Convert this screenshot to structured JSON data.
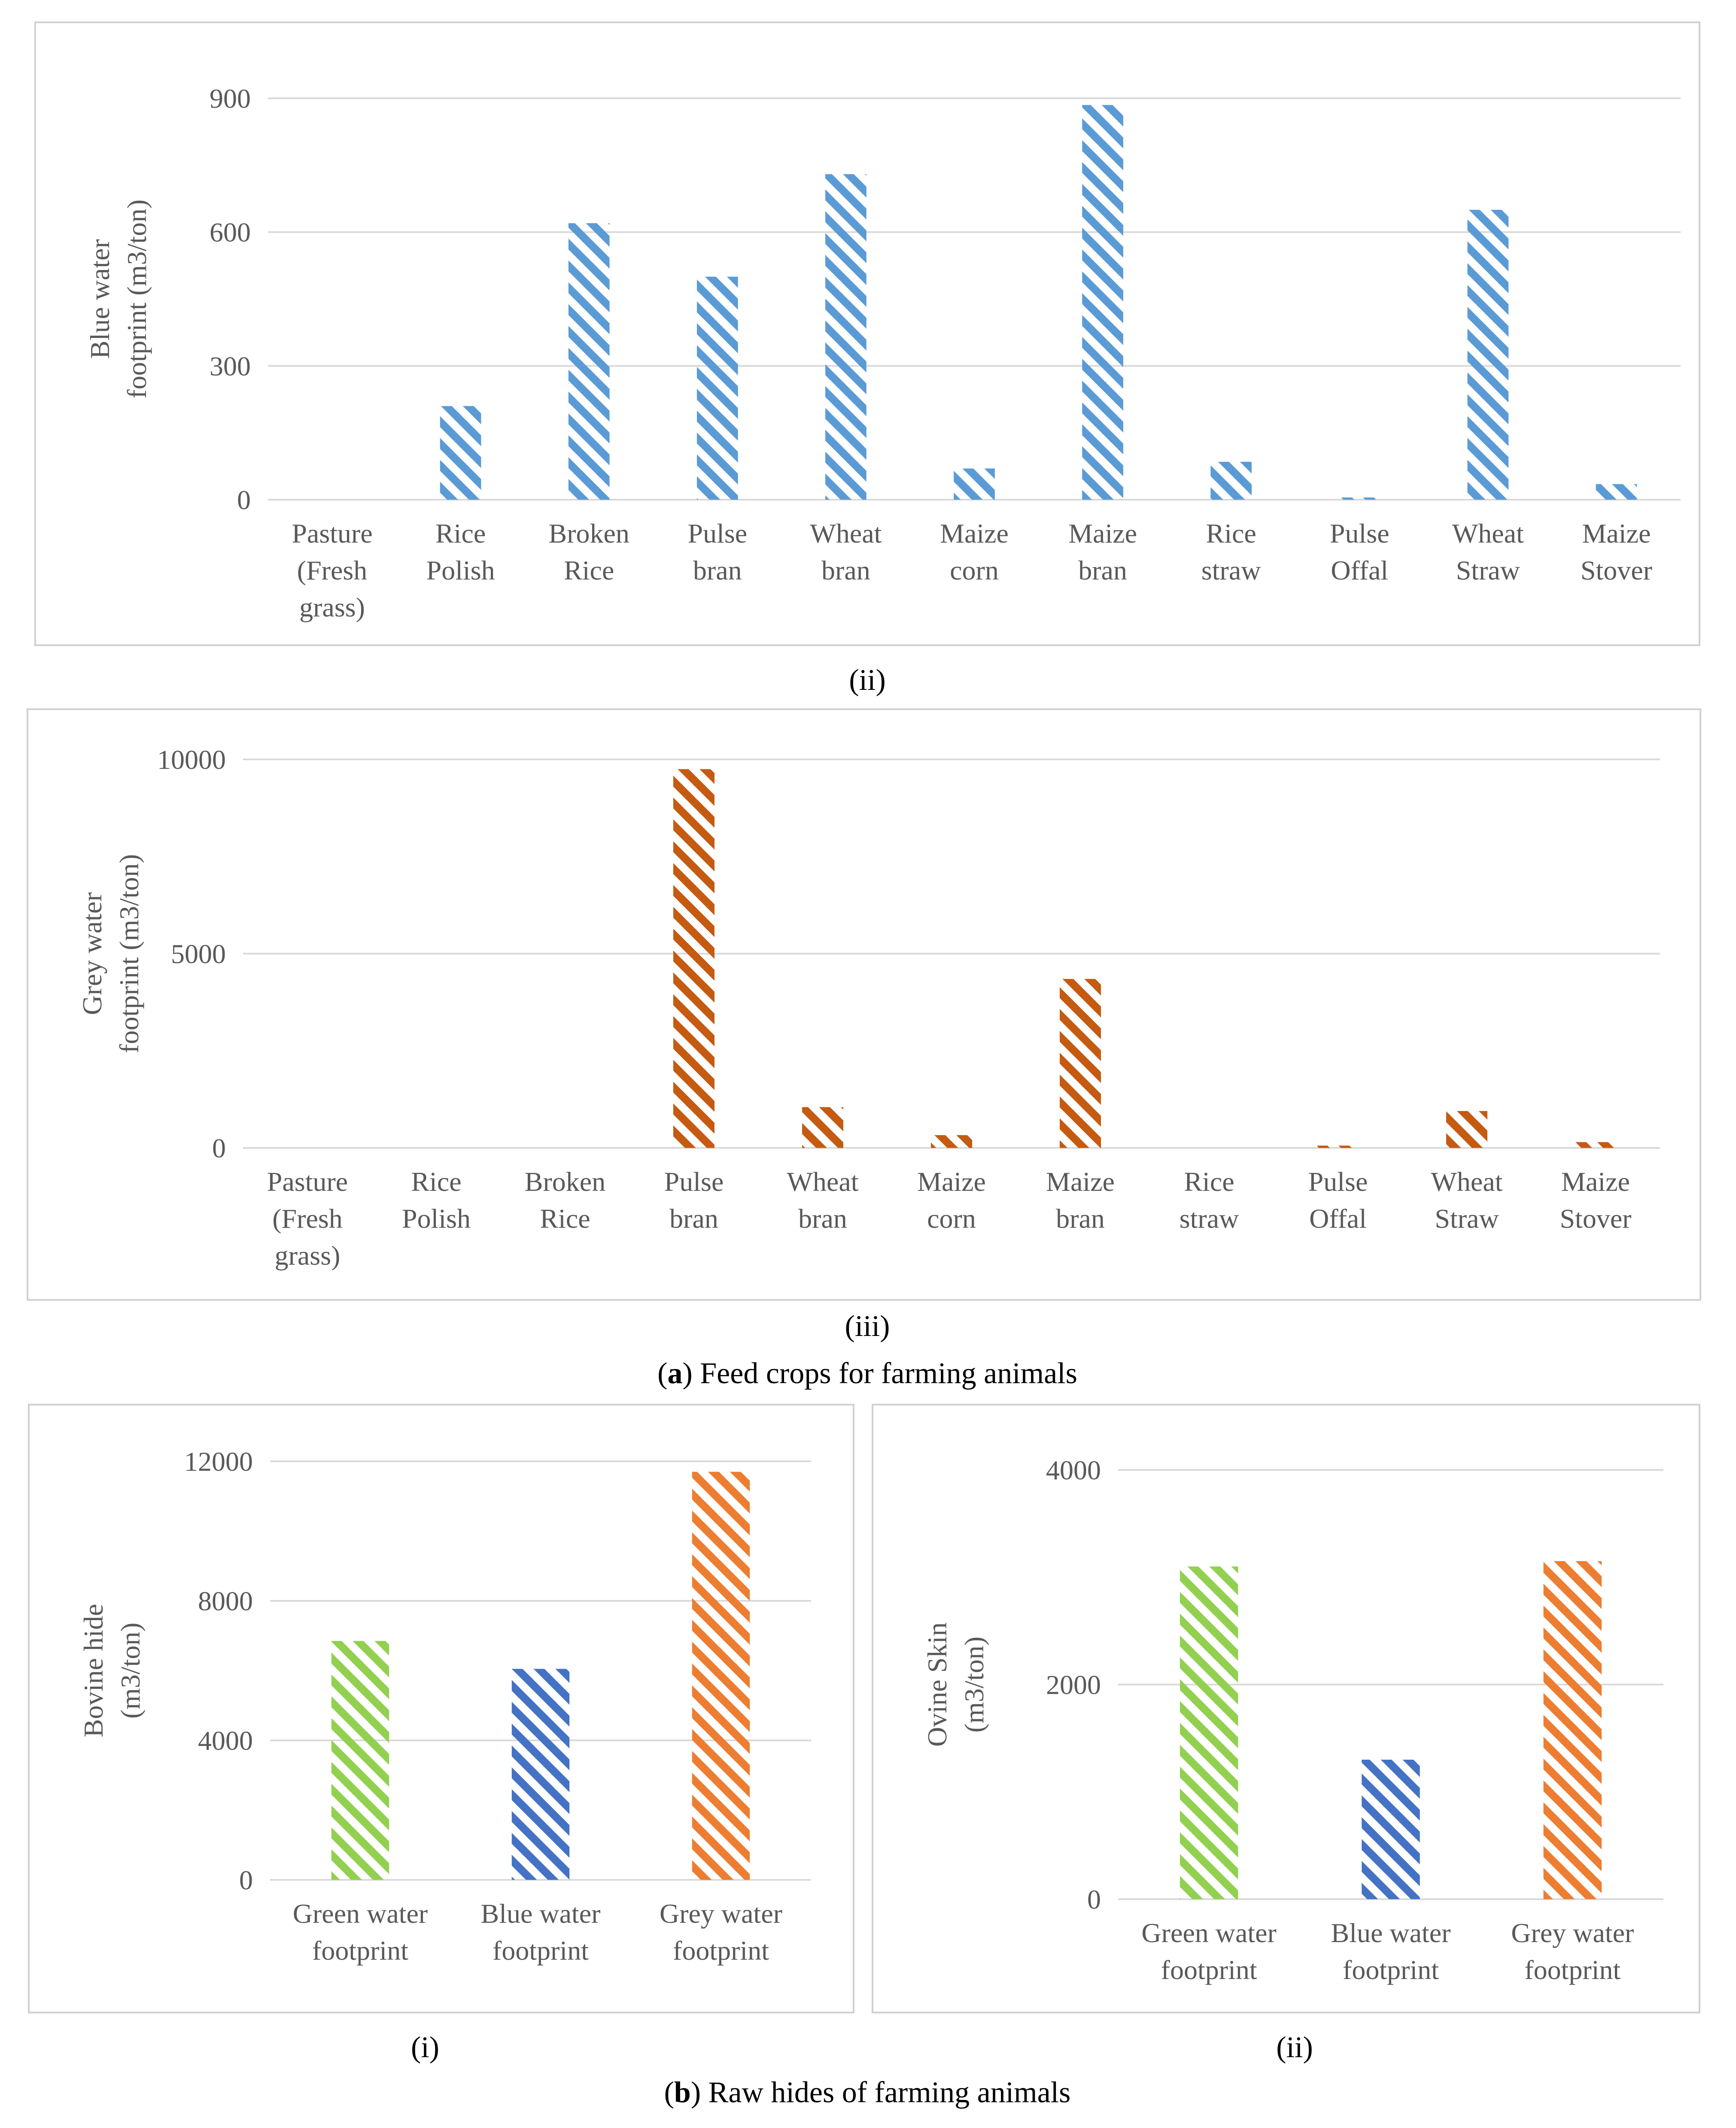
{
  "colors": {
    "blue_light": "#5b9bd5",
    "rust": "#c55a11",
    "green": "#92d050",
    "blue_dark": "#4472c4",
    "orange": "#ed7d31",
    "grid": "#d9d9d9",
    "text": "#595959"
  },
  "captions": {
    "a_ii": "(ii)",
    "a_iii": "(iii)",
    "a_letter": "a",
    "a_text": ") Feed crops for farming animals",
    "b_i": "(i)",
    "b_ii": "(ii)",
    "b_letter": "b",
    "b_text": ") Raw hides of farming animals"
  },
  "chart_data": [
    {
      "id": "blue-wf-feed",
      "type": "bar",
      "title": "",
      "ylabel": [
        "Blue water",
        "footprint (m3/ton)"
      ],
      "categories": [
        [
          "Pasture",
          "(Fresh",
          "grass)"
        ],
        [
          "Rice",
          "Polish"
        ],
        [
          "Broken",
          "Rice"
        ],
        [
          "Pulse",
          "bran"
        ],
        [
          "Wheat",
          "bran"
        ],
        [
          "Maize",
          "corn"
        ],
        [
          "Maize",
          "bran"
        ],
        [
          "Rice",
          "straw"
        ],
        [
          "Pulse",
          "Offal"
        ],
        [
          "Wheat",
          "Straw"
        ],
        [
          "Maize",
          "Stover"
        ]
      ],
      "values": [
        0,
        210,
        620,
        500,
        730,
        70,
        885,
        85,
        5,
        650,
        35
      ],
      "ylim": [
        0,
        900
      ],
      "yticks": [
        0,
        300,
        600,
        900
      ],
      "colors": [
        "blue_light"
      ]
    },
    {
      "id": "grey-wf-feed",
      "type": "bar",
      "title": "",
      "ylabel": [
        "Grey water",
        "footprint (m3/ton)"
      ],
      "categories": [
        [
          "Pasture",
          "(Fresh",
          "grass)"
        ],
        [
          "Rice",
          "Polish"
        ],
        [
          "Broken",
          "Rice"
        ],
        [
          "Pulse",
          "bran"
        ],
        [
          "Wheat",
          "bran"
        ],
        [
          "Maize",
          "corn"
        ],
        [
          "Maize",
          "bran"
        ],
        [
          "Rice",
          "straw"
        ],
        [
          "Pulse",
          "Offal"
        ],
        [
          "Wheat",
          "Straw"
        ],
        [
          "Maize",
          "Stover"
        ]
      ],
      "values": [
        0,
        0,
        0,
        9750,
        1050,
        330,
        4350,
        0,
        60,
        950,
        150
      ],
      "ylim": [
        0,
        10000
      ],
      "yticks": [
        0,
        5000,
        10000
      ],
      "colors": [
        "rust"
      ]
    },
    {
      "id": "bovine-hide",
      "type": "bar",
      "title": "",
      "ylabel": [
        "Bovine hide",
        "(m3/ton)"
      ],
      "categories": [
        [
          "Green water",
          "footprint"
        ],
        [
          "Blue water",
          "footprint"
        ],
        [
          "Grey water",
          "footprint"
        ]
      ],
      "values": [
        6850,
        6050,
        11700
      ],
      "ylim": [
        0,
        12000
      ],
      "yticks": [
        0,
        4000,
        8000,
        12000
      ],
      "colors": [
        "green",
        "blue_dark",
        "orange"
      ]
    },
    {
      "id": "ovine-skin",
      "type": "bar",
      "title": "",
      "ylabel": [
        "Ovine Skin",
        "(m3/ton)"
      ],
      "categories": [
        [
          "Green water",
          "footprint"
        ],
        [
          "Blue water",
          "footprint"
        ],
        [
          "Grey water",
          "footprint"
        ]
      ],
      "values": [
        3100,
        1300,
        3150
      ],
      "ylim": [
        0,
        4000
      ],
      "yticks": [
        0,
        2000,
        4000
      ],
      "colors": [
        "green",
        "blue_dark",
        "orange"
      ]
    }
  ]
}
